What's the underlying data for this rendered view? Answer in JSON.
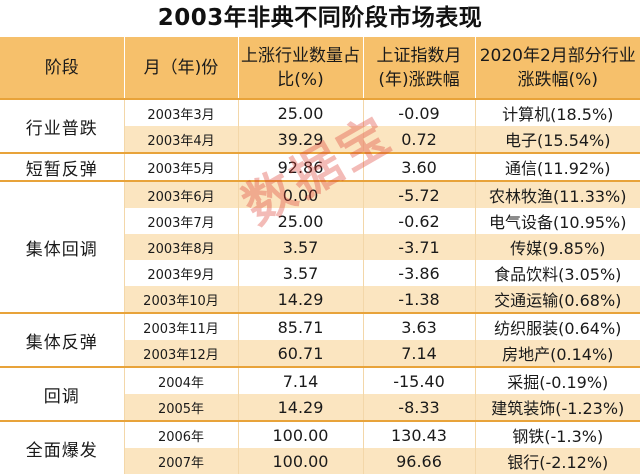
{
  "title": "2003年非典不同阶段市场表现",
  "headers": [
    "阶段",
    "月（年)份",
    "上涨行业数量占比(%)",
    "上证指数月(年)涨跌幅",
    "2020年2月部分行业涨跌幅(%)"
  ],
  "watermark": "数据宝",
  "groups": [
    {
      "stage": "行业普跌",
      "rows": [
        {
          "month": "2003年3月",
          "ratio": "25.00",
          "index": "-0.09",
          "industry": "计算机(18.5%)"
        },
        {
          "month": "2003年4月",
          "ratio": "39.29",
          "index": "0.72",
          "industry": "电子(15.54%)"
        }
      ]
    },
    {
      "stage": "短暂反弹",
      "rows": [
        {
          "month": "2003年5月",
          "ratio": "92.86",
          "index": "3.60",
          "industry": "通信(11.92%)"
        }
      ]
    },
    {
      "stage": "集体回调",
      "rows": [
        {
          "month": "2003年6月",
          "ratio": "0.00",
          "index": "-5.72",
          "industry": "农林牧渔(11.33%)"
        },
        {
          "month": "2003年7月",
          "ratio": "25.00",
          "index": "-0.62",
          "industry": "电气设备(10.95%)"
        },
        {
          "month": "2003年8月",
          "ratio": "3.57",
          "index": "-3.71",
          "industry": "传媒(9.85%)"
        },
        {
          "month": "2003年9月",
          "ratio": "3.57",
          "index": "-3.86",
          "industry": "食品饮料(3.05%)"
        },
        {
          "month": "2003年10月",
          "ratio": "14.29",
          "index": "-1.38",
          "industry": "交通运输(0.68%)"
        }
      ]
    },
    {
      "stage": "集体反弹",
      "rows": [
        {
          "month": "2003年11月",
          "ratio": "85.71",
          "index": "3.63",
          "industry": "纺织服装(0.64%)"
        },
        {
          "month": "2003年12月",
          "ratio": "60.71",
          "index": "7.14",
          "industry": "房地产(0.14%)"
        }
      ]
    },
    {
      "stage": "回调",
      "rows": [
        {
          "month": "2004年",
          "ratio": "7.14",
          "index": "-15.40",
          "industry": "采掘(-0.19%)"
        },
        {
          "month": "2005年",
          "ratio": "14.29",
          "index": "-8.33",
          "industry": "建筑装饰(-1.23%)"
        }
      ]
    },
    {
      "stage": "全面爆发",
      "rows": [
        {
          "month": "2006年",
          "ratio": "100.00",
          "index": "130.43",
          "industry": "钢铁(-1.3%)"
        },
        {
          "month": "2007年",
          "ratio": "100.00",
          "index": "96.66",
          "industry": "银行(-2.12%)"
        }
      ]
    }
  ]
}
